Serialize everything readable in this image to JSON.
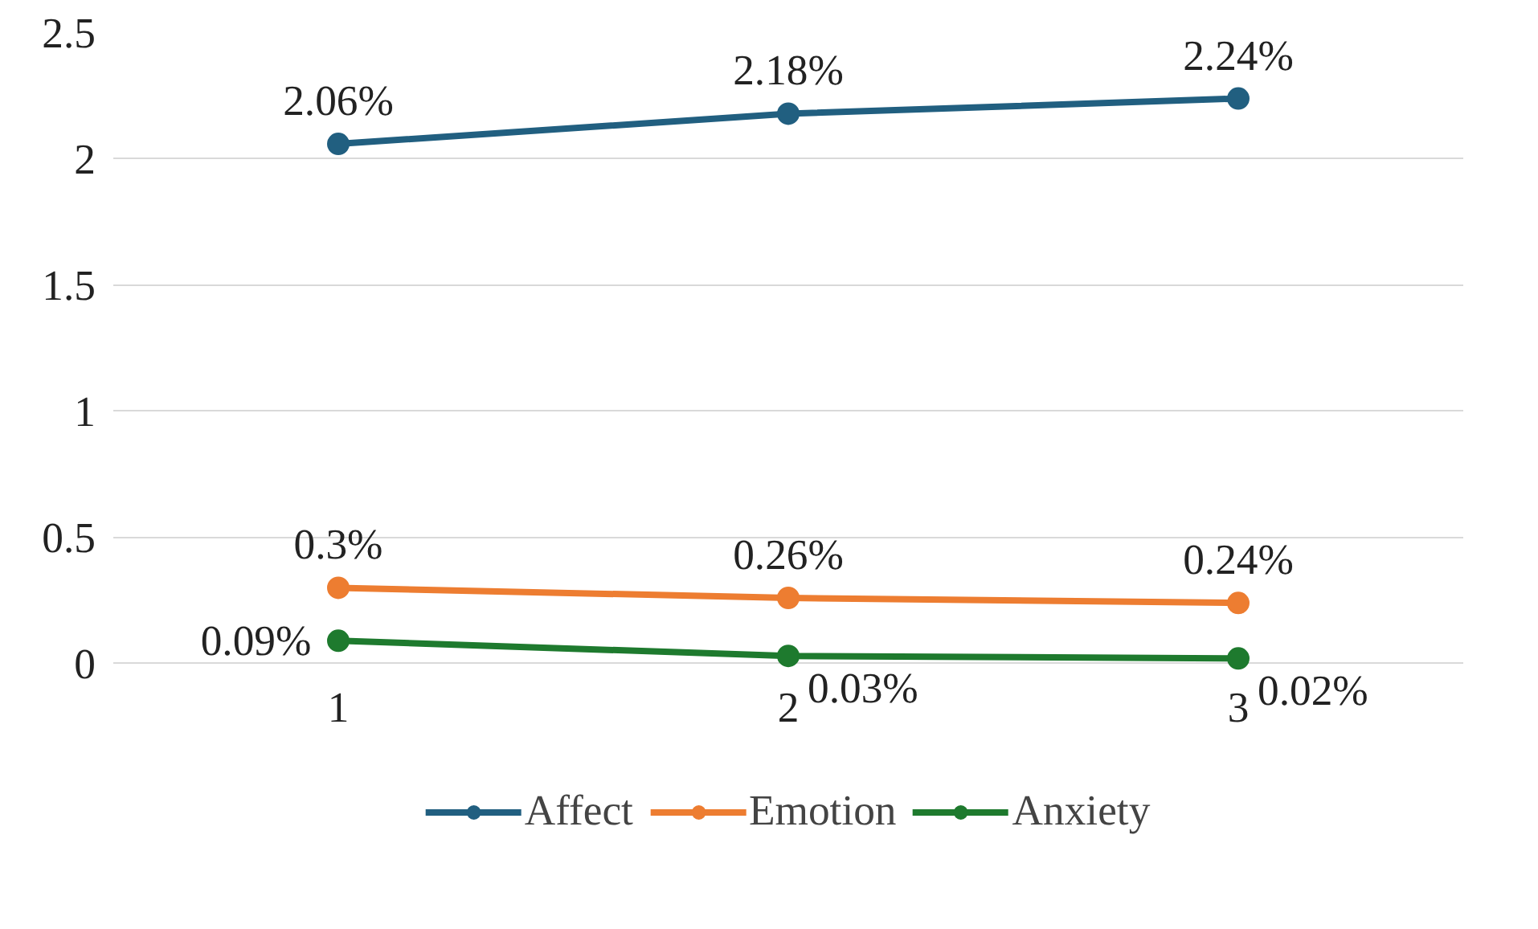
{
  "chart_data": {
    "type": "line",
    "categories": [
      "1",
      "2",
      "3"
    ],
    "series": [
      {
        "name": "Affect",
        "color": "#215f80",
        "values": [
          2.06,
          2.18,
          2.24
        ],
        "value_labels": [
          "2.06%",
          "2.18%",
          "2.24%"
        ]
      },
      {
        "name": "Emotion",
        "color": "#ed7d31",
        "values": [
          0.3,
          0.26,
          0.24
        ],
        "value_labels": [
          "0.3%",
          "0.26%",
          "0.24%"
        ]
      },
      {
        "name": "Anxiety",
        "color": "#1e7a2e",
        "values": [
          0.09,
          0.03,
          0.02
        ],
        "value_labels": [
          "0.09%",
          "0.03%",
          "0.02%"
        ]
      }
    ],
    "ylim": [
      0,
      2.5
    ],
    "yticks": [
      0,
      0.5,
      1,
      1.5,
      2,
      2.5
    ],
    "grid": "y",
    "legend": "bottom",
    "marker": "circle",
    "line_style": "solid"
  }
}
